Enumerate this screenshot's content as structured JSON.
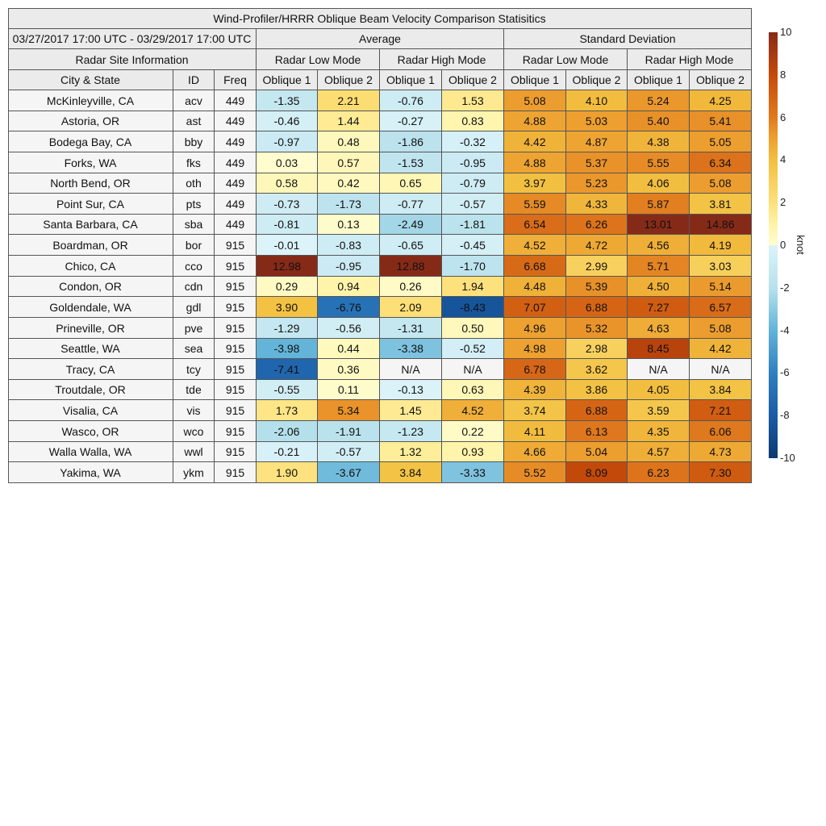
{
  "chart_data": {
    "type": "table",
    "title": "Wind-Profiler/HRRR Oblique Beam Velocity Comparison Statisitics",
    "period": "03/27/2017 17:00 UTC - 03/29/2017 17:00 UTC",
    "site_header": "Radar Site Information",
    "groups": [
      "Average",
      "Standard Deviation"
    ],
    "modes": [
      "Radar Low Mode",
      "Radar High Mode",
      "Radar Low Mode",
      "Radar High Mode"
    ],
    "columns": [
      "City & State",
      "ID",
      "Freq",
      "Oblique 1",
      "Oblique 2",
      "Oblique 1",
      "Oblique 2",
      "Oblique 1",
      "Oblique 2",
      "Oblique 1",
      "Oblique 2"
    ],
    "rows": [
      [
        "McKinleyville, CA",
        "acv",
        "449",
        "-1.35",
        "2.21",
        "-0.76",
        "1.53",
        "5.08",
        "4.10",
        "5.24",
        "4.25"
      ],
      [
        "Astoria, OR",
        "ast",
        "449",
        "-0.46",
        "1.44",
        "-0.27",
        "0.83",
        "4.88",
        "5.03",
        "5.40",
        "5.41"
      ],
      [
        "Bodega Bay, CA",
        "bby",
        "449",
        "-0.97",
        "0.48",
        "-1.86",
        "-0.32",
        "4.42",
        "4.87",
        "4.38",
        "5.05"
      ],
      [
        "Forks, WA",
        "fks",
        "449",
        "0.03",
        "0.57",
        "-1.53",
        "-0.95",
        "4.88",
        "5.37",
        "5.55",
        "6.34"
      ],
      [
        "North Bend, OR",
        "oth",
        "449",
        "0.58",
        "0.42",
        "0.65",
        "-0.79",
        "3.97",
        "5.23",
        "4.06",
        "5.08"
      ],
      [
        "Point Sur, CA",
        "pts",
        "449",
        "-0.73",
        "-1.73",
        "-0.77",
        "-0.57",
        "5.59",
        "4.33",
        "5.87",
        "3.81"
      ],
      [
        "Santa Barbara, CA",
        "sba",
        "449",
        "-0.81",
        "0.13",
        "-2.49",
        "-1.81",
        "6.54",
        "6.26",
        "13.01",
        "14.86"
      ],
      [
        "Boardman, OR",
        "bor",
        "915",
        "-0.01",
        "-0.83",
        "-0.65",
        "-0.45",
        "4.52",
        "4.72",
        "4.56",
        "4.19"
      ],
      [
        "Chico, CA",
        "cco",
        "915",
        "12.98",
        "-0.95",
        "12.88",
        "-1.70",
        "6.68",
        "2.99",
        "5.71",
        "3.03"
      ],
      [
        "Condon, OR",
        "cdn",
        "915",
        "0.29",
        "0.94",
        "0.26",
        "1.94",
        "4.48",
        "5.39",
        "4.50",
        "5.14"
      ],
      [
        "Goldendale, WA",
        "gdl",
        "915",
        "3.90",
        "-6.76",
        "2.09",
        "-8.43",
        "7.07",
        "6.88",
        "7.27",
        "6.57"
      ],
      [
        "Prineville, OR",
        "pve",
        "915",
        "-1.29",
        "-0.56",
        "-1.31",
        "0.50",
        "4.96",
        "5.32",
        "4.63",
        "5.08"
      ],
      [
        "Seattle, WA",
        "sea",
        "915",
        "-3.98",
        "0.44",
        "-3.38",
        "-0.52",
        "4.98",
        "2.98",
        "8.45",
        "4.42"
      ],
      [
        "Tracy, CA",
        "tcy",
        "915",
        "-7.41",
        "0.36",
        "N/A",
        "N/A",
        "6.78",
        "3.62",
        "N/A",
        "N/A"
      ],
      [
        "Troutdale, OR",
        "tde",
        "915",
        "-0.55",
        "0.11",
        "-0.13",
        "0.63",
        "4.39",
        "3.86",
        "4.05",
        "3.84"
      ],
      [
        "Visalia, CA",
        "vis",
        "915",
        "1.73",
        "5.34",
        "1.45",
        "4.52",
        "3.74",
        "6.88",
        "3.59",
        "7.21"
      ],
      [
        "Wasco, OR",
        "wco",
        "915",
        "-2.06",
        "-1.91",
        "-1.23",
        "0.22",
        "4.11",
        "6.13",
        "4.35",
        "6.06"
      ],
      [
        "Walla Walla, WA",
        "wwl",
        "915",
        "-0.21",
        "-0.57",
        "1.32",
        "0.93",
        "4.66",
        "5.04",
        "4.57",
        "4.73"
      ],
      [
        "Yakima, WA",
        "ykm",
        "915",
        "1.90",
        "-3.67",
        "3.84",
        "-3.33",
        "5.52",
        "8.09",
        "6.23",
        "7.30"
      ]
    ],
    "colorbar": {
      "min": -10,
      "max": 10,
      "ticks": [
        "10",
        "8",
        "6",
        "4",
        "2",
        "0",
        "-2",
        "-4",
        "-6",
        "-8",
        "-10"
      ],
      "label": "knot"
    },
    "na_color": "#f5f5f5"
  }
}
